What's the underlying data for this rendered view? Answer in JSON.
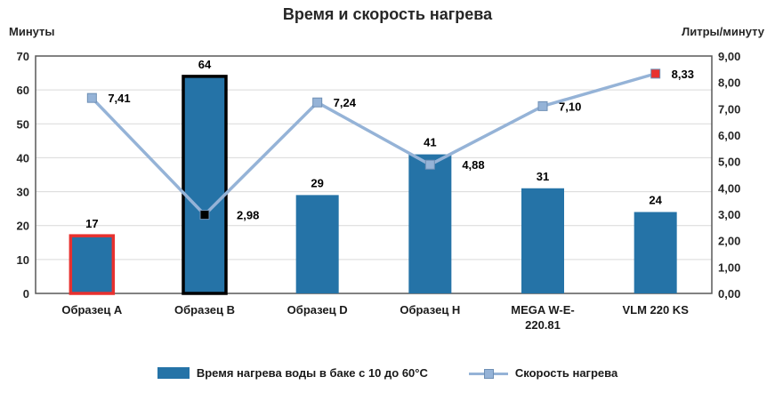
{
  "chart_data": {
    "type": "combo",
    "title": "Время и скорость нагрева",
    "left_axis": {
      "label": "Минуты",
      "min": 0,
      "max": 70,
      "step": 10
    },
    "right_axis": {
      "label": "Литры/минуту",
      "min": 0,
      "max": 9,
      "step": 1,
      "decimals": 2
    },
    "categories": [
      "Образец A",
      "Образец B",
      "Образец D",
      "Образец H",
      "MEGA W-E-\n220.81",
      "VLM 220 KS"
    ],
    "series": [
      {
        "name": "Время нагрева воды в баке с 10 до 60°С",
        "type": "bar",
        "axis": "left",
        "color": "#2573A7",
        "values": [
          17,
          64,
          29,
          41,
          31,
          24
        ],
        "labels": [
          "17",
          "64",
          "29",
          "41",
          "31",
          "24"
        ],
        "point_border_colors": [
          "#E8312F",
          "#000000",
          null,
          null,
          null,
          null
        ]
      },
      {
        "name": "Скорость нагрева",
        "type": "line",
        "axis": "right",
        "color": "#95B3D7",
        "values": [
          7.41,
          2.98,
          7.24,
          4.88,
          7.1,
          8.33
        ],
        "labels": [
          "7,41",
          "2,98",
          "7,24",
          "4,88",
          "7,10",
          "8,33"
        ],
        "marker_colors": [
          "#95B3D7",
          "#000000",
          "#95B3D7",
          "#95B3D7",
          "#95B3D7",
          "#E8312F"
        ]
      }
    ],
    "grid_color": "#D9D9D9",
    "plot_border_color": "#595959",
    "legend": {
      "bar_label": "Время нагрева воды в баке с 10 до 60°С",
      "line_label": "Скорость нагрева"
    }
  }
}
